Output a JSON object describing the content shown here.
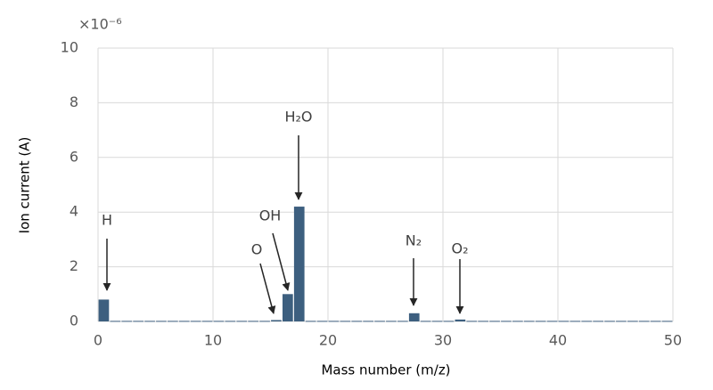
{
  "chart_data": {
    "type": "histogram",
    "x_label": "Mass number (m/z)",
    "y_label": "Ion current (A)",
    "y_multiplier": "×10⁻⁶",
    "bins": [
      0,
      1,
      2,
      3,
      4,
      5,
      6,
      7,
      8,
      9,
      10,
      11,
      12,
      13,
      14,
      15,
      16,
      17,
      18,
      19,
      20,
      21,
      22,
      23,
      24,
      25,
      26,
      27,
      28,
      29,
      30,
      31,
      32,
      33,
      34,
      35,
      36,
      37,
      38,
      39,
      40,
      41,
      42,
      43,
      44,
      45,
      46,
      47,
      48,
      49,
      50
    ],
    "values": [
      0.8,
      0.02,
      0.02,
      0.02,
      0.02,
      0.02,
      0.02,
      0.02,
      0.02,
      0.02,
      0.02,
      0.02,
      0.02,
      0.02,
      0.02,
      0.05,
      1.0,
      4.2,
      0.02,
      0.02,
      0.02,
      0.02,
      0.02,
      0.02,
      0.02,
      0.02,
      0.02,
      0.3,
      0.02,
      0.02,
      0.02,
      0.07,
      0.02,
      0.02,
      0.02,
      0.02,
      0.02,
      0.02,
      0.02,
      0.02,
      0.02,
      0.02,
      0.02,
      0.02,
      0.02,
      0.02,
      0.02,
      0.02,
      0.02,
      0.02
    ],
    "color": "#3d5f7f",
    "xlim": [
      0,
      50
    ],
    "xticks": [
      0,
      10,
      20,
      30,
      40,
      50
    ],
    "ylim": [
      0,
      10
    ],
    "yticks": [
      0,
      2,
      4,
      6,
      8,
      10
    ],
    "grid": true,
    "annotations": [
      "H",
      "O",
      "OH",
      "H₂O",
      "N₂",
      "O₂"
    ]
  }
}
